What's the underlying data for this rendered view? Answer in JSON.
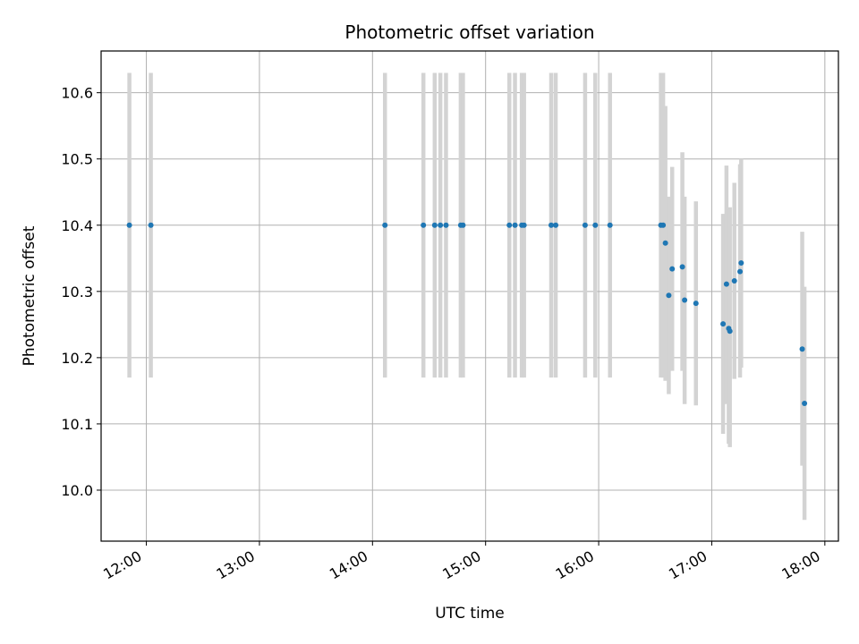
{
  "chart_data": {
    "type": "scatter",
    "title": "Photometric offset variation",
    "xlabel": "UTC time",
    "ylabel": "Photometric offset",
    "x_unit": "hour of day (UTC)",
    "xlim": [
      11.6,
      18.12
    ],
    "ylim": [
      9.923,
      10.663
    ],
    "grid": true,
    "x_ticks": [
      {
        "value": 12,
        "label": "12:00"
      },
      {
        "value": 13,
        "label": "13:00"
      },
      {
        "value": 14,
        "label": "14:00"
      },
      {
        "value": 15,
        "label": "15:00"
      },
      {
        "value": 16,
        "label": "16:00"
      },
      {
        "value": 17,
        "label": "17:00"
      },
      {
        "value": 18,
        "label": "18:00"
      }
    ],
    "y_ticks": [
      {
        "value": 10.0,
        "label": "10.0"
      },
      {
        "value": 10.1,
        "label": "10.1"
      },
      {
        "value": 10.2,
        "label": "10.2"
      },
      {
        "value": 10.3,
        "label": "10.3"
      },
      {
        "value": 10.4,
        "label": "10.4"
      },
      {
        "value": 10.5,
        "label": "10.5"
      },
      {
        "value": 10.6,
        "label": "10.6"
      }
    ],
    "marker_color": "#1f77b4",
    "errorbar_color": "#d3d3d3",
    "points": [
      {
        "x": 11.85,
        "y": 10.4,
        "low": 10.17,
        "high": 10.63
      },
      {
        "x": 12.04,
        "y": 10.4,
        "low": 10.17,
        "high": 10.63
      },
      {
        "x": 14.11,
        "y": 10.4,
        "low": 10.17,
        "high": 10.63
      },
      {
        "x": 14.45,
        "y": 10.4,
        "low": 10.17,
        "high": 10.63
      },
      {
        "x": 14.55,
        "y": 10.4,
        "low": 10.17,
        "high": 10.63
      },
      {
        "x": 14.6,
        "y": 10.4,
        "low": 10.17,
        "high": 10.63
      },
      {
        "x": 14.65,
        "y": 10.4,
        "low": 10.17,
        "high": 10.63
      },
      {
        "x": 14.78,
        "y": 10.4,
        "low": 10.17,
        "high": 10.63
      },
      {
        "x": 14.8,
        "y": 10.4,
        "low": 10.17,
        "high": 10.63
      },
      {
        "x": 15.21,
        "y": 10.4,
        "low": 10.17,
        "high": 10.63
      },
      {
        "x": 15.26,
        "y": 10.4,
        "low": 10.17,
        "high": 10.63
      },
      {
        "x": 15.32,
        "y": 10.4,
        "low": 10.17,
        "high": 10.63
      },
      {
        "x": 15.34,
        "y": 10.4,
        "low": 10.17,
        "high": 10.63
      },
      {
        "x": 15.58,
        "y": 10.4,
        "low": 10.17,
        "high": 10.63
      },
      {
        "x": 15.62,
        "y": 10.4,
        "low": 10.17,
        "high": 10.63
      },
      {
        "x": 15.88,
        "y": 10.4,
        "low": 10.17,
        "high": 10.63
      },
      {
        "x": 15.97,
        "y": 10.4,
        "low": 10.17,
        "high": 10.63
      },
      {
        "x": 16.1,
        "y": 10.4,
        "low": 10.17,
        "high": 10.63
      },
      {
        "x": 16.55,
        "y": 10.4,
        "low": 10.17,
        "high": 10.63
      },
      {
        "x": 16.57,
        "y": 10.4,
        "low": 10.17,
        "high": 10.63
      },
      {
        "x": 16.59,
        "y": 10.373,
        "low": 10.165,
        "high": 10.58
      },
      {
        "x": 16.62,
        "y": 10.294,
        "low": 10.145,
        "high": 10.443
      },
      {
        "x": 16.65,
        "y": 10.334,
        "low": 10.18,
        "high": 10.488
      },
      {
        "x": 16.74,
        "y": 10.337,
        "low": 10.18,
        "high": 10.51
      },
      {
        "x": 16.76,
        "y": 10.287,
        "low": 10.13,
        "high": 10.443
      },
      {
        "x": 16.86,
        "y": 10.282,
        "low": 10.128,
        "high": 10.436
      },
      {
        "x": 17.1,
        "y": 10.251,
        "low": 10.085,
        "high": 10.417
      },
      {
        "x": 17.13,
        "y": 10.311,
        "low": 10.13,
        "high": 10.49
      },
      {
        "x": 17.15,
        "y": 10.244,
        "low": 10.07,
        "high": 10.41
      },
      {
        "x": 17.16,
        "y": 10.24,
        "low": 10.065,
        "high": 10.427
      },
      {
        "x": 17.2,
        "y": 10.316,
        "low": 10.168,
        "high": 10.464
      },
      {
        "x": 17.25,
        "y": 10.33,
        "low": 10.17,
        "high": 10.492
      },
      {
        "x": 17.26,
        "y": 10.343,
        "low": 10.185,
        "high": 10.5
      },
      {
        "x": 17.8,
        "y": 10.213,
        "low": 10.037,
        "high": 10.39
      },
      {
        "x": 17.82,
        "y": 10.131,
        "low": 9.955,
        "high": 10.307
      }
    ]
  }
}
